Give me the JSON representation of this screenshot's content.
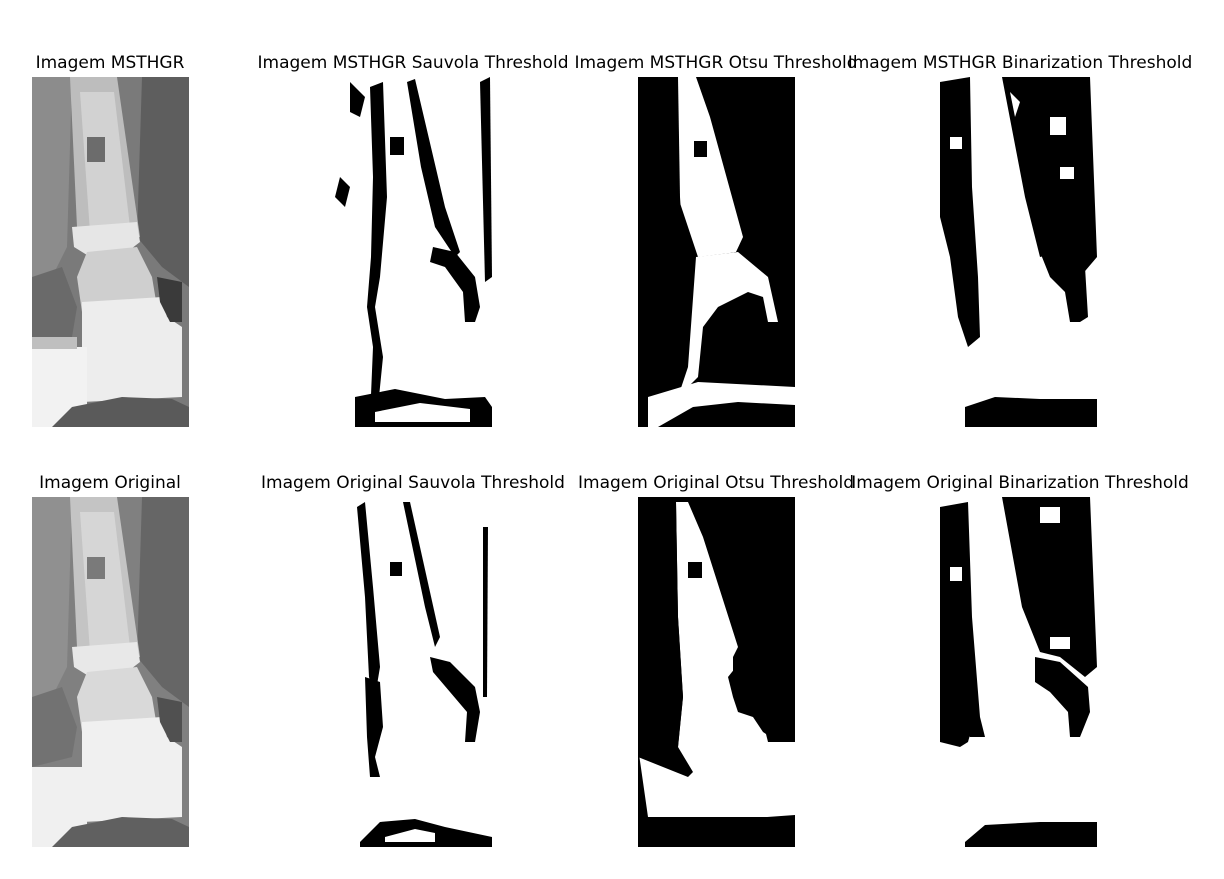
{
  "figure": {
    "titles": {
      "r1c1": "Imagem MSTHGR",
      "r1c2": "Imagem MSTHGR Sauvola Threshold",
      "r1c3": "Imagem MSTHGR Otsu Threshold",
      "r1c4": "Imagem MSTHGR Binarization Threshold",
      "r2c1": "Imagem Original",
      "r2c2": "Imagem Original Sauvola Threshold",
      "r2c3": "Imagem Original Otsu Threshold",
      "r2c4": "Imagem Original Binarization Threshold"
    }
  }
}
